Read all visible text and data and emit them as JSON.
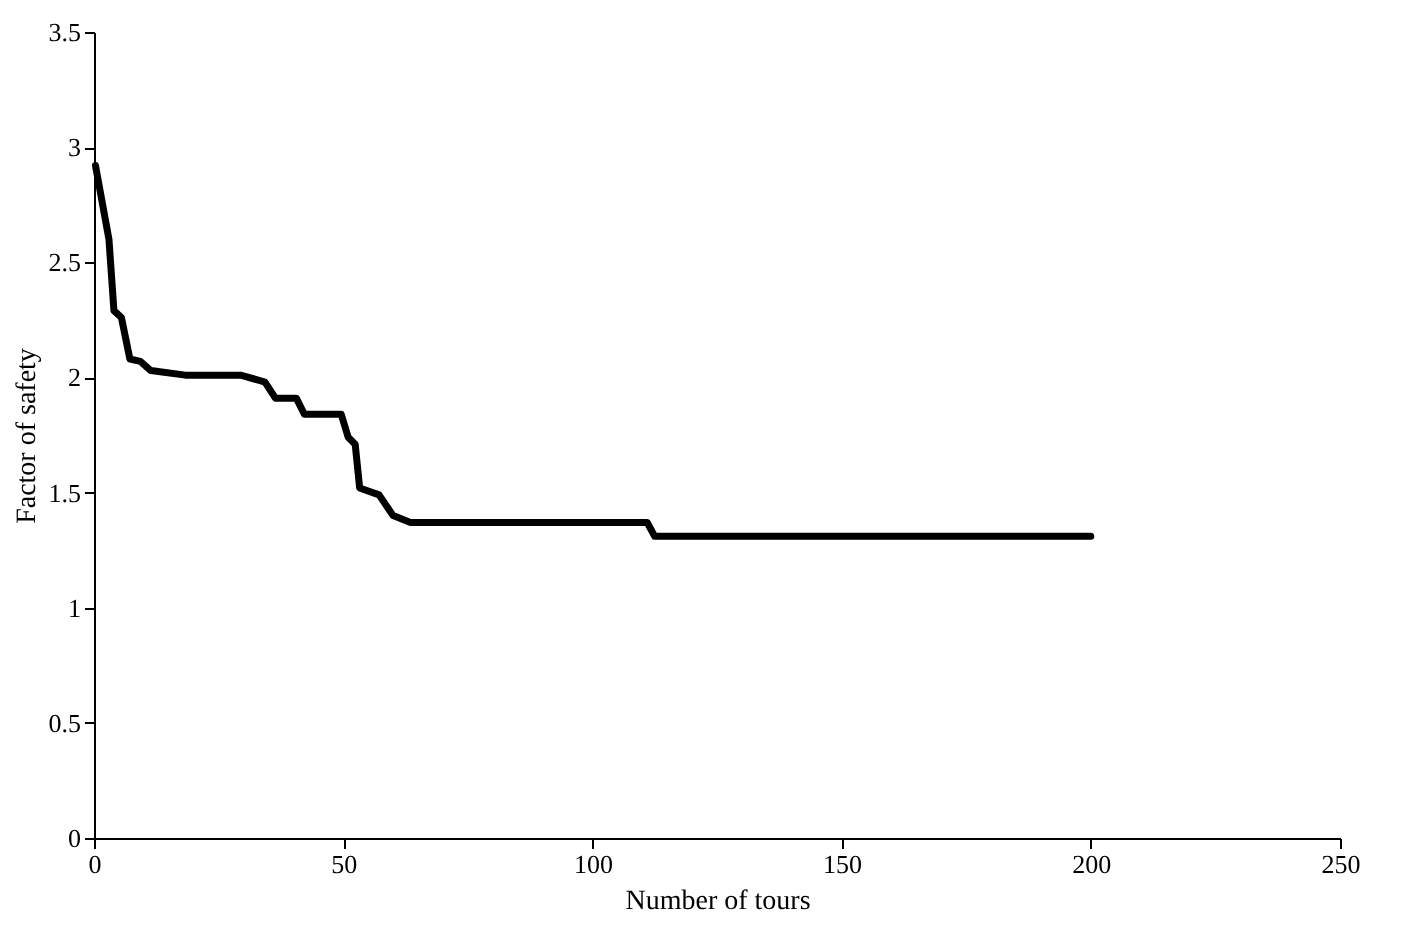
{
  "chart_data": {
    "type": "line",
    "xlabel": "Number of tours",
    "ylabel": "Factor of safety",
    "xlim": [
      0,
      250
    ],
    "xticks": [
      0,
      50,
      100,
      150,
      200,
      250
    ],
    "ylim": [
      0,
      3.5
    ],
    "yticks": [
      0,
      0.5,
      1,
      1.5,
      2,
      2.5,
      3,
      3.5
    ],
    "grid": false,
    "marker": "none",
    "line_style": "solid",
    "series": [
      {
        "color": "#000000",
        "x": [
          0.3,
          3,
          4,
          5.5,
          7.2,
          9.3,
          11.4,
          18.3,
          29.4,
          34.3,
          36.4,
          40.6,
          42.2,
          49.6,
          51,
          52.4,
          53.3,
          57.2,
          60,
          63.5,
          111,
          112.5,
          200
        ],
        "values": [
          2.92,
          2.6,
          2.29,
          2.26,
          2.08,
          2.07,
          2.03,
          2.01,
          2.01,
          1.98,
          1.91,
          1.91,
          1.84,
          1.84,
          1.74,
          1.71,
          1.52,
          1.49,
          1.4,
          1.37,
          1.37,
          1.31,
          1.31
        ]
      }
    ]
  }
}
